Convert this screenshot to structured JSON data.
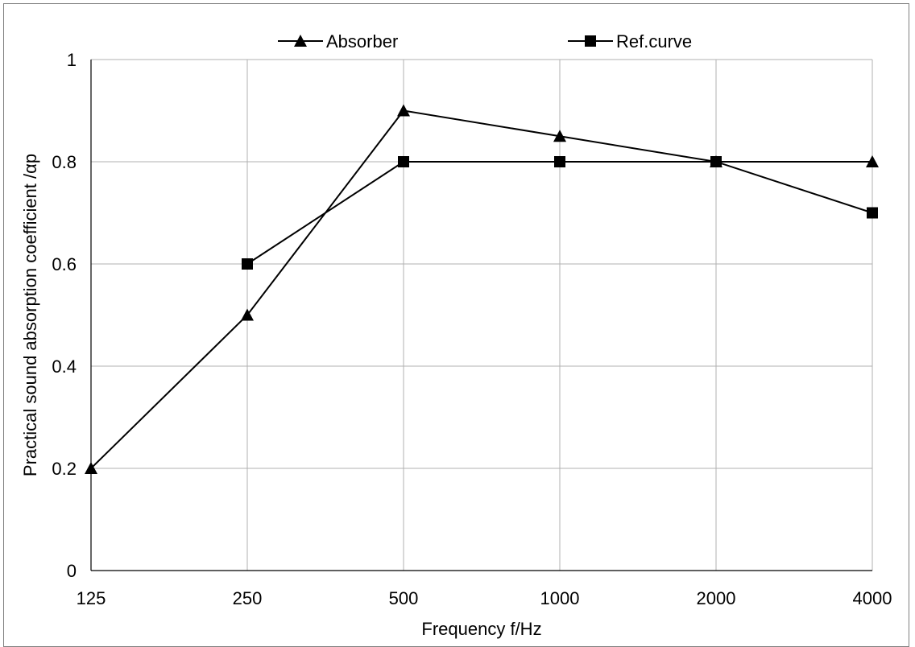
{
  "chart_data": {
    "type": "line",
    "categories": [
      "125",
      "250",
      "500",
      "1000",
      "2000",
      "4000"
    ],
    "series": [
      {
        "name": "Absorber",
        "marker": "triangle",
        "x": [
          "125",
          "250",
          "500",
          "1000",
          "2000",
          "4000"
        ],
        "values": [
          0.2,
          0.5,
          0.9,
          0.85,
          0.8,
          0.8
        ]
      },
      {
        "name": "Ref.curve",
        "marker": "square",
        "x": [
          "250",
          "500",
          "1000",
          "2000",
          "4000"
        ],
        "values": [
          0.6,
          0.8,
          0.8,
          0.8,
          0.7
        ]
      }
    ],
    "xlabel": "Frequency  f/Hz",
    "ylabel": "Practical sound absorption coefficient /αp",
    "ylim": [
      0,
      1
    ],
    "yticks": [
      "0",
      "0.2",
      "0.4",
      "0.6",
      "0.8",
      "1"
    ],
    "grid": true,
    "legend_position": "top",
    "colors": {
      "series": "#000000",
      "grid": "#b0b0b0",
      "axis": "#000000"
    }
  }
}
